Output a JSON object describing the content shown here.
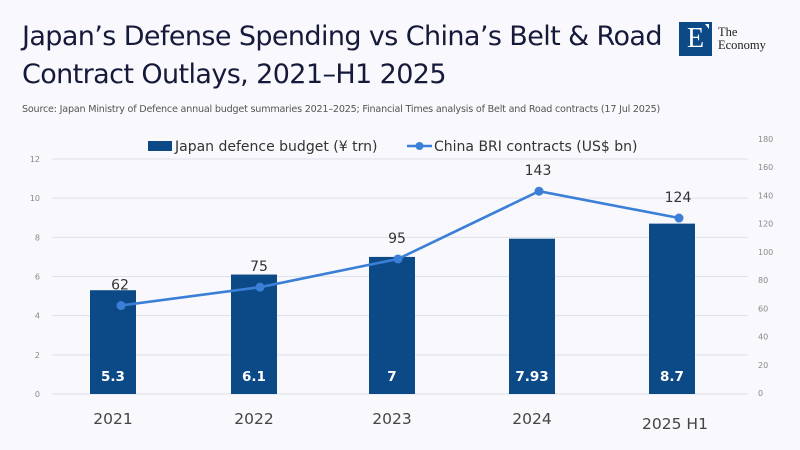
{
  "header": {
    "title": "Japan’s Defense Spending vs China’s Belt & Road Contract Outlays, 2021–H1 2025",
    "source": "Source: Japan Ministry of Defence annual budget summaries 2021–2025; Financial Times analysis of Belt and Road contracts (17 Jul 2025)"
  },
  "logo": {
    "mark": "E",
    "line1": "The",
    "line2": "Economy"
  },
  "colors": {
    "bar": "#0c4a87",
    "line": "#3b7fd6",
    "grid": "#dde1ea"
  },
  "chart_data": {
    "type": "bar",
    "title": "Japan’s Defense Spending vs China’s Belt & Road Contract Outlays, 2021–H1 2025",
    "categories": [
      "2021",
      "2022",
      "2023",
      "2024",
      "2025 H1"
    ],
    "series": [
      {
        "name": "Japan defence budget (¥ trn)",
        "type": "bar",
        "axis": "left",
        "values": [
          5.3,
          6.1,
          7,
          7.93,
          8.7
        ],
        "labels": [
          "5.3",
          "6.1",
          "7",
          "7.93",
          "8.7"
        ]
      },
      {
        "name": "China BRI contracts (US$ bn)",
        "type": "line",
        "axis": "right",
        "values": [
          62,
          75,
          95,
          143,
          124
        ],
        "labels": [
          "62",
          "75",
          "95",
          "143",
          "124"
        ]
      }
    ],
    "left_axis": {
      "ylim": [
        0,
        12
      ],
      "ticks": [
        "0",
        "2",
        "4",
        "6",
        "8",
        "10",
        "12"
      ]
    },
    "right_axis": {
      "ylim": [
        0,
        180
      ],
      "ticks": [
        "0",
        "20",
        "40",
        "60",
        "80",
        "100",
        "120",
        "140",
        "160",
        "180"
      ]
    },
    "xlabel": "",
    "ylabel": "",
    "grid": true,
    "legend": "top-center"
  }
}
